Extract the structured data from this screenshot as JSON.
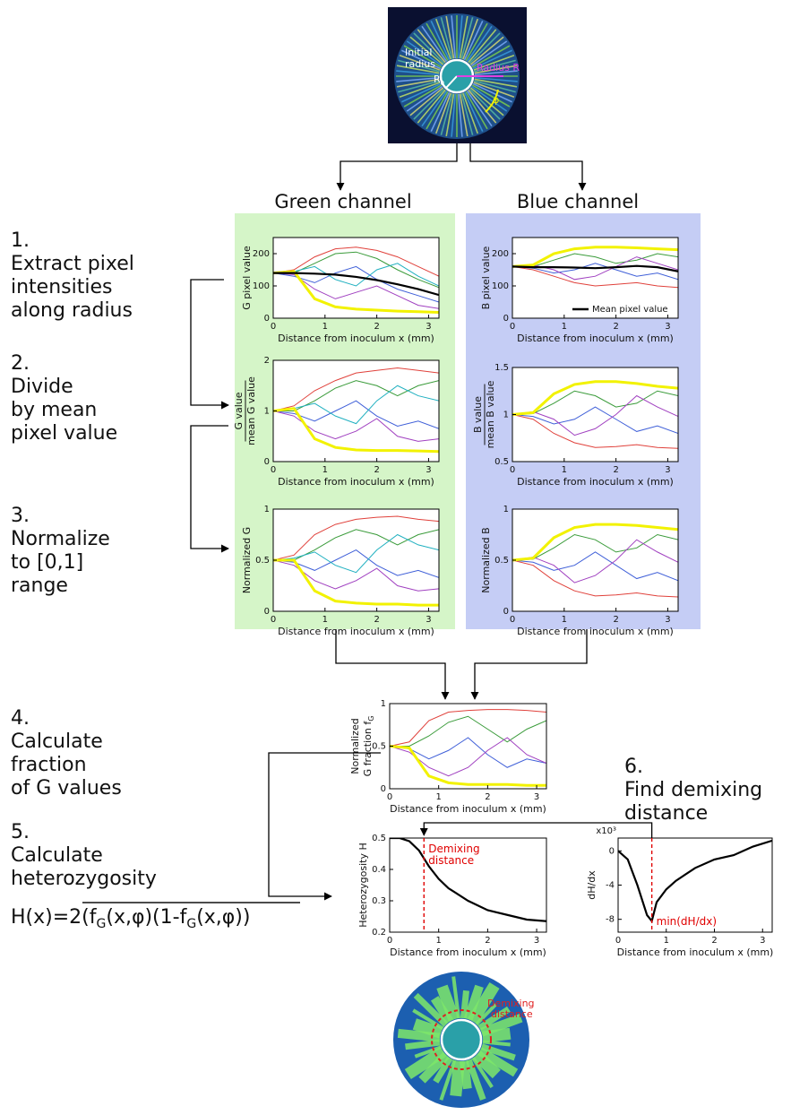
{
  "columns": [
    "Green channel",
    "Blue channel"
  ],
  "steps": [
    {
      "number": "1.",
      "lines": [
        "Extract pixel",
        "intensities",
        "along radius"
      ]
    },
    {
      "number": "2.",
      "lines": [
        "Divide",
        "by mean",
        "pixel value"
      ]
    },
    {
      "number": "3.",
      "lines": [
        "Normalize",
        "to [0,1]",
        "range"
      ]
    },
    {
      "number": "4.",
      "lines": [
        "Calculate",
        "fraction",
        "of G values"
      ]
    },
    {
      "number": "5.",
      "lines": [
        "Calculate",
        "heterozygosity"
      ]
    },
    {
      "number": "6.",
      "lines": [
        "Find demixing",
        "distance"
      ]
    }
  ],
  "formula": [
    "H(x)=2",
    "(f",
    "G",
    "(x,φ)(1-f",
    "G",
    "(x,φ))"
  ],
  "top_image": {
    "initial_radius": [
      "Initial",
      "radius"
    ],
    "r0": [
      "R",
      "0"
    ],
    "radius": "Radius R",
    "angle": "φ"
  },
  "bottom_image": {
    "annotation": [
      "Demixing",
      "distance"
    ]
  },
  "chart_data": [
    {
      "type": "line",
      "ylabel": [
        "G pixel value"
      ],
      "xlabel": "Distance from inoculum x (mm)",
      "x": [
        0,
        0.4,
        0.8,
        1.2,
        1.6,
        2.0,
        2.4,
        2.8,
        3.2
      ],
      "xlim": [
        0,
        3.2
      ],
      "xticks": [
        0,
        1,
        2,
        3
      ],
      "ylim": [
        0,
        250
      ],
      "yticks": [
        0,
        100,
        200
      ],
      "series": [
        {
          "color": "#e0413b",
          "values": [
            140,
            150,
            190,
            215,
            220,
            210,
            190,
            160,
            130
          ]
        },
        {
          "color": "#3a9b3a",
          "values": [
            140,
            140,
            170,
            200,
            205,
            185,
            150,
            120,
            95
          ]
        },
        {
          "color": "#3f5fd8",
          "values": [
            140,
            130,
            110,
            140,
            160,
            120,
            90,
            70,
            50
          ]
        },
        {
          "color": "#a040c0",
          "values": [
            140,
            135,
            90,
            60,
            80,
            100,
            70,
            40,
            30
          ]
        },
        {
          "color": "#20b0c0",
          "values": [
            140,
            145,
            160,
            120,
            100,
            150,
            170,
            130,
            100
          ]
        },
        {
          "color": "#f2f200",
          "values": [
            140,
            145,
            60,
            35,
            28,
            25,
            22,
            20,
            18
          ]
        },
        {
          "color": "#000000",
          "values": [
            140,
            140,
            138,
            135,
            128,
            118,
            105,
            90,
            72
          ]
        }
      ]
    },
    {
      "type": "line",
      "ylabel": [
        "G value",
        "mean G value"
      ],
      "ylabel_fraction": true,
      "xlabel": "Distance from inoculum x (mm)",
      "x": [
        0,
        0.4,
        0.8,
        1.2,
        1.6,
        2.0,
        2.4,
        2.8,
        3.2
      ],
      "xlim": [
        0,
        3.2
      ],
      "xticks": [
        0,
        1,
        2,
        3
      ],
      "ylim": [
        0,
        2
      ],
      "yticks": [
        0,
        1,
        2
      ],
      "series": [
        {
          "color": "#e0413b",
          "values": [
            1,
            1.1,
            1.4,
            1.6,
            1.75,
            1.8,
            1.85,
            1.8,
            1.75
          ]
        },
        {
          "color": "#3a9b3a",
          "values": [
            1,
            1,
            1.2,
            1.45,
            1.6,
            1.5,
            1.3,
            1.5,
            1.6
          ]
        },
        {
          "color": "#3f5fd8",
          "values": [
            1,
            0.95,
            0.8,
            1.0,
            1.2,
            0.9,
            0.7,
            0.8,
            0.65
          ]
        },
        {
          "color": "#a040c0",
          "values": [
            1,
            0.9,
            0.6,
            0.45,
            0.6,
            0.85,
            0.5,
            0.4,
            0.45
          ]
        },
        {
          "color": "#20b0c0",
          "values": [
            1,
            1.05,
            1.15,
            0.9,
            0.75,
            1.2,
            1.5,
            1.3,
            1.2
          ]
        },
        {
          "color": "#f2f200",
          "values": [
            1,
            1.05,
            0.45,
            0.28,
            0.23,
            0.22,
            0.22,
            0.21,
            0.2
          ]
        }
      ]
    },
    {
      "type": "line",
      "ylabel": [
        "Normalized G"
      ],
      "xlabel": "Distance from inoculum x (mm)",
      "x": [
        0,
        0.4,
        0.8,
        1.2,
        1.6,
        2.0,
        2.4,
        2.8,
        3.2
      ],
      "xlim": [
        0,
        3.2
      ],
      "xticks": [
        0,
        1,
        2,
        3
      ],
      "ylim": [
        0,
        1
      ],
      "yticks": [
        0,
        0.5,
        1
      ],
      "series": [
        {
          "color": "#e0413b",
          "values": [
            0.5,
            0.55,
            0.75,
            0.85,
            0.9,
            0.92,
            0.93,
            0.9,
            0.88
          ]
        },
        {
          "color": "#3a9b3a",
          "values": [
            0.5,
            0.5,
            0.6,
            0.72,
            0.8,
            0.75,
            0.65,
            0.75,
            0.8
          ]
        },
        {
          "color": "#3f5fd8",
          "values": [
            0.5,
            0.48,
            0.4,
            0.5,
            0.6,
            0.45,
            0.35,
            0.4,
            0.33
          ]
        },
        {
          "color": "#a040c0",
          "values": [
            0.5,
            0.45,
            0.3,
            0.22,
            0.3,
            0.42,
            0.25,
            0.2,
            0.22
          ]
        },
        {
          "color": "#20b0c0",
          "values": [
            0.5,
            0.52,
            0.58,
            0.45,
            0.38,
            0.6,
            0.75,
            0.65,
            0.6
          ]
        },
        {
          "color": "#f2f200",
          "values": [
            0.5,
            0.5,
            0.2,
            0.1,
            0.08,
            0.07,
            0.07,
            0.06,
            0.06
          ]
        }
      ]
    },
    {
      "type": "line",
      "ylabel": [
        "B pixel value"
      ],
      "xlabel": "Distance from inoculum x (mm)",
      "x": [
        0,
        0.4,
        0.8,
        1.2,
        1.6,
        2.0,
        2.4,
        2.8,
        3.2
      ],
      "xlim": [
        0,
        3.2
      ],
      "xticks": [
        0,
        1,
        2,
        3
      ],
      "ylim": [
        0,
        250
      ],
      "yticks": [
        0,
        100,
        200
      ],
      "legend": "lower right",
      "series": [
        {
          "color": "#e0413b",
          "values": [
            160,
            150,
            130,
            110,
            100,
            105,
            110,
            100,
            95
          ]
        },
        {
          "color": "#3a9b3a",
          "values": [
            160,
            160,
            180,
            200,
            190,
            170,
            180,
            200,
            190
          ]
        },
        {
          "color": "#3f5fd8",
          "values": [
            160,
            155,
            140,
            150,
            170,
            150,
            130,
            140,
            120
          ]
        },
        {
          "color": "#a040c0",
          "values": [
            160,
            165,
            150,
            120,
            130,
            160,
            190,
            170,
            150
          ]
        },
        {
          "color": "#f2f200",
          "values": [
            160,
            165,
            200,
            215,
            220,
            220,
            218,
            215,
            212
          ]
        },
        {
          "name": "Mean pixel value",
          "color": "#000000",
          "values": [
            160,
            158,
            158,
            157,
            155,
            158,
            162,
            158,
            145
          ]
        }
      ]
    },
    {
      "type": "line",
      "ylabel": [
        "B value",
        "mean B value"
      ],
      "ylabel_fraction": true,
      "xlabel": "Distance from inoculum x (mm)",
      "x": [
        0,
        0.4,
        0.8,
        1.2,
        1.6,
        2.0,
        2.4,
        2.8,
        3.2
      ],
      "xlim": [
        0,
        3.2
      ],
      "xticks": [
        0,
        1,
        2,
        3
      ],
      "ylim": [
        0.5,
        1.5
      ],
      "yticks": [
        0.5,
        1,
        1.5
      ],
      "series": [
        {
          "color": "#e0413b",
          "values": [
            1,
            0.95,
            0.8,
            0.7,
            0.65,
            0.66,
            0.68,
            0.65,
            0.64
          ]
        },
        {
          "color": "#3a9b3a",
          "values": [
            1,
            1.01,
            1.12,
            1.25,
            1.2,
            1.08,
            1.12,
            1.25,
            1.2
          ]
        },
        {
          "color": "#3f5fd8",
          "values": [
            1,
            0.98,
            0.9,
            0.95,
            1.08,
            0.95,
            0.82,
            0.88,
            0.8
          ]
        },
        {
          "color": "#a040c0",
          "values": [
            1,
            1.03,
            0.95,
            0.78,
            0.85,
            1.0,
            1.2,
            1.08,
            0.98
          ]
        },
        {
          "color": "#f2f200",
          "values": [
            1,
            1.02,
            1.22,
            1.32,
            1.35,
            1.35,
            1.33,
            1.3,
            1.28
          ]
        }
      ]
    },
    {
      "type": "line",
      "ylabel": [
        "Normalized B"
      ],
      "xlabel": "Distance from inoculum x (mm)",
      "x": [
        0,
        0.4,
        0.8,
        1.2,
        1.6,
        2.0,
        2.4,
        2.8,
        3.2
      ],
      "xlim": [
        0,
        3.2
      ],
      "xticks": [
        0,
        1,
        2,
        3
      ],
      "ylim": [
        0,
        1
      ],
      "yticks": [
        0,
        0.5,
        1
      ],
      "series": [
        {
          "color": "#e0413b",
          "values": [
            0.5,
            0.45,
            0.3,
            0.2,
            0.15,
            0.16,
            0.18,
            0.15,
            0.14
          ]
        },
        {
          "color": "#3a9b3a",
          "values": [
            0.5,
            0.51,
            0.62,
            0.75,
            0.7,
            0.58,
            0.62,
            0.75,
            0.7
          ]
        },
        {
          "color": "#3f5fd8",
          "values": [
            0.5,
            0.48,
            0.4,
            0.45,
            0.58,
            0.45,
            0.32,
            0.38,
            0.3
          ]
        },
        {
          "color": "#a040c0",
          "values": [
            0.5,
            0.53,
            0.45,
            0.28,
            0.35,
            0.5,
            0.7,
            0.58,
            0.48
          ]
        },
        {
          "color": "#f2f200",
          "values": [
            0.5,
            0.52,
            0.72,
            0.82,
            0.85,
            0.85,
            0.84,
            0.82,
            0.8
          ]
        }
      ]
    },
    {
      "type": "line",
      "ylabel": [
        "Normalized",
        "G fraction f"
      ],
      "ylabel_sub": "G",
      "xlabel": "Distance from inoculum x (mm)",
      "x": [
        0,
        0.4,
        0.8,
        1.2,
        1.6,
        2.0,
        2.4,
        2.8,
        3.2
      ],
      "xlim": [
        0,
        3.2
      ],
      "xticks": [
        0,
        1,
        2,
        3
      ],
      "ylim": [
        0,
        1
      ],
      "yticks": [
        0,
        0.5,
        1
      ],
      "series": [
        {
          "color": "#e0413b",
          "values": [
            0.5,
            0.55,
            0.8,
            0.9,
            0.92,
            0.93,
            0.93,
            0.92,
            0.9
          ]
        },
        {
          "color": "#3a9b3a",
          "values": [
            0.5,
            0.5,
            0.62,
            0.78,
            0.85,
            0.7,
            0.55,
            0.7,
            0.8
          ]
        },
        {
          "color": "#3f5fd8",
          "values": [
            0.5,
            0.47,
            0.35,
            0.45,
            0.6,
            0.4,
            0.25,
            0.35,
            0.3
          ]
        },
        {
          "color": "#a040c0",
          "values": [
            0.5,
            0.43,
            0.25,
            0.15,
            0.25,
            0.45,
            0.6,
            0.4,
            0.3
          ]
        },
        {
          "color": "#f2f200",
          "values": [
            0.5,
            0.48,
            0.15,
            0.07,
            0.05,
            0.05,
            0.05,
            0.04,
            0.04
          ]
        }
      ]
    },
    {
      "type": "line",
      "ylabel": [
        "Heterozygosity H"
      ],
      "xlabel": "Distance from inoculum x (mm)",
      "x": [
        0,
        0.2,
        0.4,
        0.6,
        0.8,
        1.0,
        1.2,
        1.6,
        2.0,
        2.4,
        2.8,
        3.2
      ],
      "xlim": [
        0,
        3.2
      ],
      "xticks": [
        0,
        1,
        2,
        3
      ],
      "ylim": [
        0.2,
        0.5
      ],
      "yticks": [
        0.2,
        0.3,
        0.4,
        0.5
      ],
      "vline": 0.7,
      "vline_color": "#e00000",
      "annotation": [
        "Demixing",
        "distance"
      ],
      "series": [
        {
          "color": "#000000",
          "values": [
            0.5,
            0.5,
            0.49,
            0.46,
            0.41,
            0.37,
            0.34,
            0.3,
            0.27,
            0.255,
            0.24,
            0.235
          ]
        }
      ]
    },
    {
      "type": "line",
      "ylabel": [
        "dH/dx"
      ],
      "y_multiplier": "x10³",
      "xlabel": "Distance from inoculum x (mm)",
      "x": [
        0,
        0.2,
        0.4,
        0.6,
        0.7,
        0.8,
        1.0,
        1.2,
        1.6,
        2.0,
        2.4,
        2.8,
        3.2
      ],
      "xlim": [
        0,
        3.2
      ],
      "xticks": [
        0,
        1,
        2,
        3
      ],
      "ylim": [
        -9.5,
        1.5
      ],
      "yticks": [
        -8,
        -4,
        0
      ],
      "vline": 0.7,
      "vline_color": "#e00000",
      "annotation": [
        "min(dH/dx)"
      ],
      "series": [
        {
          "color": "#000000",
          "values": [
            0,
            -1,
            -4,
            -7.5,
            -8.2,
            -6,
            -4.5,
            -3.5,
            -2,
            -1,
            -0.5,
            0.5,
            1.2
          ]
        }
      ]
    }
  ]
}
